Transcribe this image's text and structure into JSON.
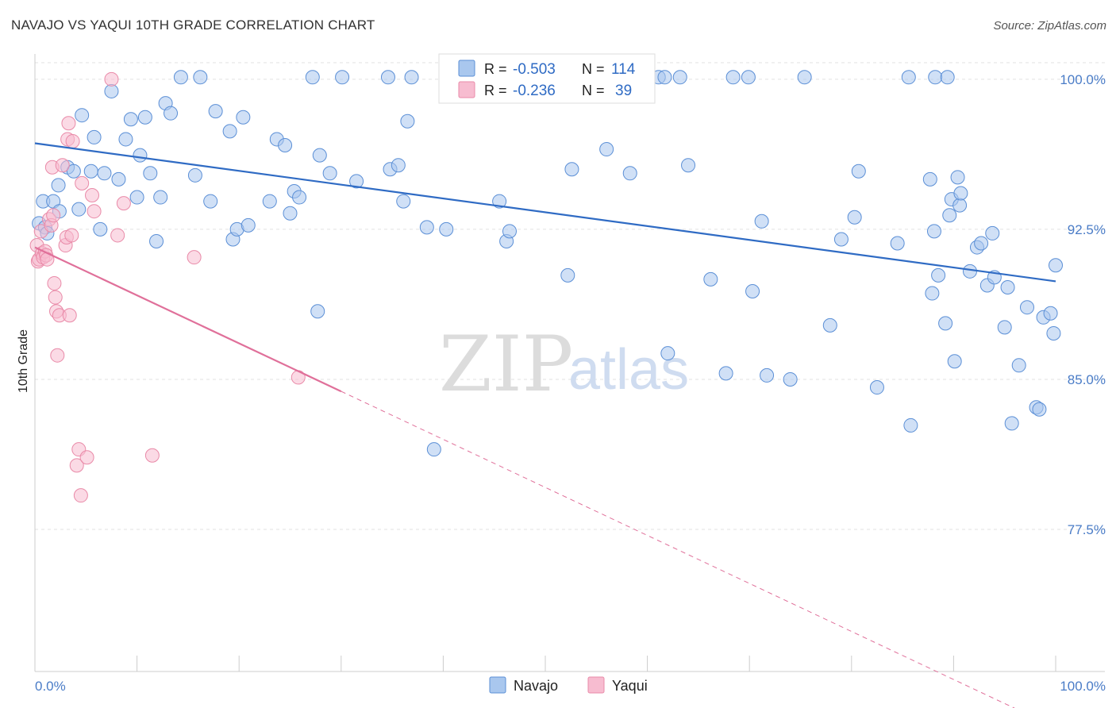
{
  "header": {
    "title": "NAVAJO VS YAQUI 10TH GRADE CORRELATION CHART",
    "source": "Source: ZipAtlas.com"
  },
  "watermark": {
    "zip": "ZIP",
    "atlas": "atlas"
  },
  "colors": {
    "navajo_fill": "#a9c7ee",
    "navajo_stroke": "#5b8fd6",
    "navajo_line": "#2f6bc4",
    "yaqui_fill": "#f7bcd0",
    "yaqui_stroke": "#e98aa8",
    "yaqui_line": "#e0709a",
    "grid": "#e2e2e2",
    "tick_label": "#4a7cc7"
  },
  "legend": {
    "rows": [
      {
        "r_label": "R =",
        "r_value": "-0.503",
        "n_label": "N =",
        "n_value": "114"
      },
      {
        "r_label": "R =",
        "r_value": "-0.236",
        "n_label": "N =",
        "n_value": "39"
      }
    ]
  },
  "bottom_legend": {
    "navajo": "Navajo",
    "yaqui": "Yaqui"
  },
  "chart_data": {
    "type": "scatter",
    "title": "NAVAJO VS YAQUI 10TH GRADE CORRELATION CHART",
    "xlabel": "",
    "ylabel": "10th Grade",
    "xlim": [
      0,
      100
    ],
    "ylim": [
      70.4,
      101.5
    ],
    "x_tick_labels": {
      "0": "0.0%",
      "100": "100.0%"
    },
    "y_ticks": [
      100.0,
      92.5,
      85.0,
      77.5
    ],
    "y_tick_labels": [
      "100.0%",
      "92.5%",
      "85.0%",
      "77.5%"
    ],
    "grid": true,
    "legend_position": "top-center",
    "series": [
      {
        "name": "Navajo",
        "r": -0.503,
        "n": 114,
        "trend": {
          "x": [
            0,
            100
          ],
          "y": [
            96.8,
            89.9
          ]
        },
        "points": [
          [
            0.4,
            92.8
          ],
          [
            0.8,
            93.9
          ],
          [
            1.0,
            92.6
          ],
          [
            1.2,
            92.3
          ],
          [
            1.8,
            93.9
          ],
          [
            2.3,
            94.7
          ],
          [
            2.4,
            93.4
          ],
          [
            3.2,
            95.6
          ],
          [
            3.8,
            95.4
          ],
          [
            4.3,
            93.5
          ],
          [
            4.6,
            98.2
          ],
          [
            5.5,
            95.4
          ],
          [
            5.8,
            97.1
          ],
          [
            6.4,
            92.5
          ],
          [
            6.8,
            95.3
          ],
          [
            7.5,
            99.4
          ],
          [
            8.2,
            95.0
          ],
          [
            8.9,
            97.0
          ],
          [
            9.4,
            98.0
          ],
          [
            10.0,
            94.1
          ],
          [
            10.3,
            96.2
          ],
          [
            10.8,
            98.1
          ],
          [
            11.3,
            95.3
          ],
          [
            11.9,
            91.9
          ],
          [
            12.3,
            94.1
          ],
          [
            12.8,
            98.8
          ],
          [
            13.3,
            98.3
          ],
          [
            14.3,
            100.1
          ],
          [
            15.7,
            95.2
          ],
          [
            16.2,
            100.1
          ],
          [
            17.2,
            93.9
          ],
          [
            17.7,
            98.4
          ],
          [
            19.1,
            97.4
          ],
          [
            19.4,
            92.0
          ],
          [
            19.8,
            92.5
          ],
          [
            20.4,
            98.1
          ],
          [
            20.9,
            92.7
          ],
          [
            23.0,
            93.9
          ],
          [
            23.7,
            97.0
          ],
          [
            24.5,
            96.7
          ],
          [
            25.0,
            93.3
          ],
          [
            25.4,
            94.4
          ],
          [
            25.9,
            94.1
          ],
          [
            27.2,
            100.1
          ],
          [
            27.7,
            88.4
          ],
          [
            27.9,
            96.2
          ],
          [
            28.9,
            95.3
          ],
          [
            30.1,
            100.1
          ],
          [
            31.5,
            94.9
          ],
          [
            34.6,
            100.1
          ],
          [
            34.8,
            95.5
          ],
          [
            35.6,
            95.7
          ],
          [
            36.1,
            93.9
          ],
          [
            36.5,
            97.9
          ],
          [
            36.9,
            100.1
          ],
          [
            38.4,
            92.6
          ],
          [
            39.1,
            81.5
          ],
          [
            40.3,
            92.5
          ],
          [
            45.5,
            93.9
          ],
          [
            46.2,
            91.9
          ],
          [
            46.5,
            92.4
          ],
          [
            52.2,
            90.2
          ],
          [
            52.6,
            95.5
          ],
          [
            53.2,
            100.1
          ],
          [
            56.0,
            96.5
          ],
          [
            58.3,
            95.3
          ],
          [
            61.1,
            100.1
          ],
          [
            61.7,
            100.1
          ],
          [
            62.0,
            86.3
          ],
          [
            63.2,
            100.1
          ],
          [
            64.0,
            95.7
          ],
          [
            66.2,
            90.0
          ],
          [
            67.7,
            85.3
          ],
          [
            68.4,
            100.1
          ],
          [
            69.9,
            100.1
          ],
          [
            70.3,
            89.4
          ],
          [
            71.2,
            92.9
          ],
          [
            71.7,
            85.2
          ],
          [
            74.0,
            85.0
          ],
          [
            75.4,
            100.1
          ],
          [
            77.9,
            87.7
          ],
          [
            79.0,
            92.0
          ],
          [
            80.3,
            93.1
          ],
          [
            80.7,
            95.4
          ],
          [
            82.5,
            84.6
          ],
          [
            84.5,
            91.8
          ],
          [
            85.6,
            100.1
          ],
          [
            85.8,
            82.7
          ],
          [
            87.7,
            95.0
          ],
          [
            87.9,
            89.3
          ],
          [
            88.1,
            92.4
          ],
          [
            88.5,
            90.2
          ],
          [
            89.2,
            87.8
          ],
          [
            89.6,
            93.2
          ],
          [
            89.8,
            94.0
          ],
          [
            90.1,
            85.9
          ],
          [
            90.4,
            95.1
          ],
          [
            90.6,
            93.7
          ],
          [
            90.7,
            94.3
          ],
          [
            91.6,
            90.4
          ],
          [
            92.3,
            91.6
          ],
          [
            92.7,
            91.8
          ],
          [
            93.3,
            89.7
          ],
          [
            93.8,
            92.3
          ],
          [
            94.0,
            90.1
          ],
          [
            95.0,
            87.6
          ],
          [
            95.3,
            89.6
          ],
          [
            95.7,
            82.8
          ],
          [
            96.4,
            85.7
          ],
          [
            97.2,
            88.6
          ],
          [
            98.1,
            83.6
          ],
          [
            98.4,
            83.5
          ],
          [
            98.8,
            88.1
          ],
          [
            99.5,
            88.3
          ],
          [
            99.8,
            87.3
          ],
          [
            100.0,
            90.7
          ],
          [
            88.2,
            100.1
          ],
          [
            89.4,
            100.1
          ]
        ]
      },
      {
        "name": "Yaqui",
        "r": -0.236,
        "n": 39,
        "trend": {
          "x": [
            0,
            30
          ],
          "y": [
            91.6,
            84.4
          ]
        },
        "trend_extension": {
          "x": [
            30,
            100
          ],
          "y": [
            84.4,
            67.6
          ]
        },
        "points": [
          [
            0.2,
            91.7
          ],
          [
            0.3,
            90.9
          ],
          [
            0.4,
            91.0
          ],
          [
            0.6,
            92.4
          ],
          [
            0.7,
            91.3
          ],
          [
            0.8,
            91.1
          ],
          [
            1.0,
            91.4
          ],
          [
            1.1,
            91.2
          ],
          [
            1.2,
            91.0
          ],
          [
            1.4,
            93.0
          ],
          [
            1.6,
            92.7
          ],
          [
            1.7,
            95.6
          ],
          [
            1.8,
            93.2
          ],
          [
            1.9,
            89.8
          ],
          [
            2.0,
            89.1
          ],
          [
            2.1,
            88.4
          ],
          [
            2.2,
            86.2
          ],
          [
            2.4,
            88.2
          ],
          [
            2.7,
            95.7
          ],
          [
            3.0,
            91.7
          ],
          [
            3.1,
            92.1
          ],
          [
            3.2,
            97.0
          ],
          [
            3.3,
            97.8
          ],
          [
            3.4,
            88.2
          ],
          [
            3.6,
            92.2
          ],
          [
            3.7,
            96.9
          ],
          [
            4.1,
            80.7
          ],
          [
            4.3,
            81.5
          ],
          [
            4.5,
            79.2
          ],
          [
            4.6,
            94.8
          ],
          [
            5.1,
            81.1
          ],
          [
            5.6,
            94.2
          ],
          [
            5.8,
            93.4
          ],
          [
            7.5,
            100.0
          ],
          [
            8.1,
            92.2
          ],
          [
            8.7,
            93.8
          ],
          [
            11.5,
            81.2
          ],
          [
            15.6,
            91.1
          ],
          [
            25.8,
            85.1
          ]
        ]
      }
    ]
  }
}
